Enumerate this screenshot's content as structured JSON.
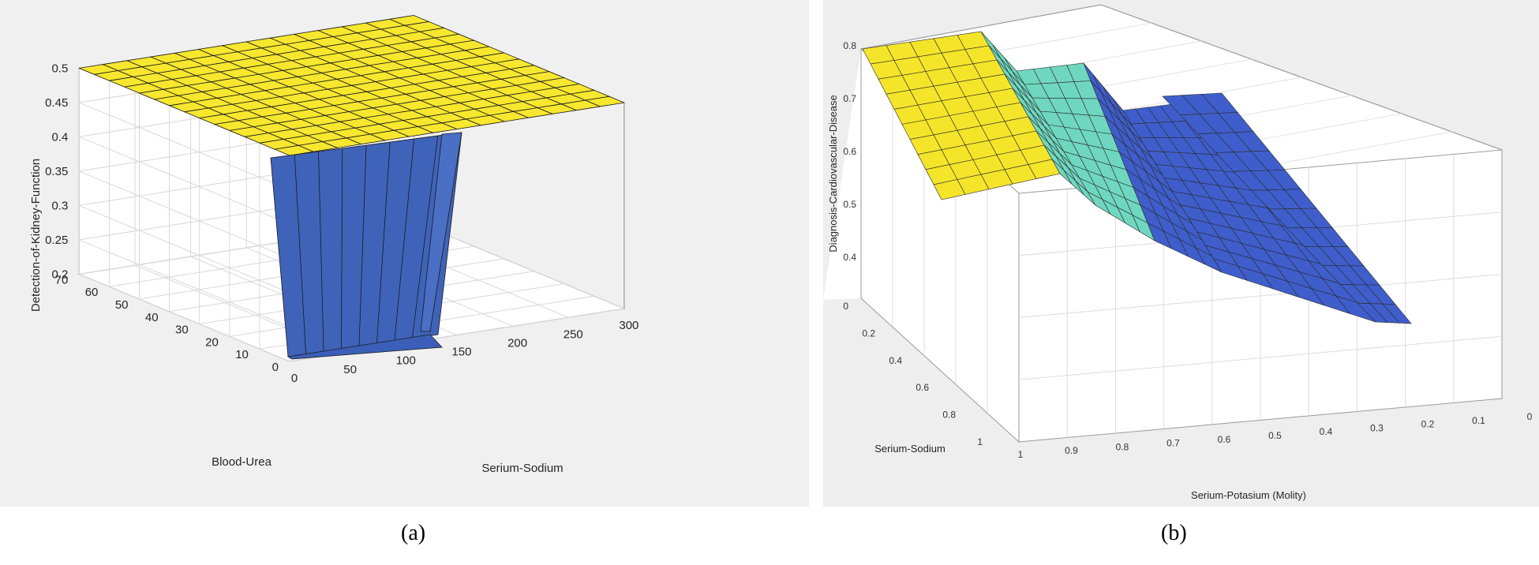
{
  "captions": {
    "a": "(a)",
    "b": "(b)"
  },
  "chart_data": [
    {
      "type": "surface",
      "panel": "(a)",
      "zlabel": "Detection-of-Kidney-Function",
      "xlabel": "Serium-Sodium",
      "ylabel": "Blood-Urea",
      "xlim": [
        0,
        300
      ],
      "ylim": [
        0,
        70
      ],
      "zlim": [
        0.2,
        0.5
      ],
      "x_ticks": [
        "0",
        "50",
        "100",
        "150",
        "200",
        "250",
        "300"
      ],
      "y_ticks": [
        "0",
        "10",
        "20",
        "30",
        "40",
        "50",
        "60",
        "70"
      ],
      "z_ticks": [
        "0.2",
        "0.25",
        "0.3",
        "0.35",
        "0.4",
        "0.45",
        "0.5"
      ],
      "regions": [
        {
          "serium_sodium": [
            0,
            110
          ],
          "blood_urea": [
            0,
            70
          ],
          "output": 0.2,
          "color": "#3b5fb8"
        },
        {
          "serium_sodium": [
            110,
            300
          ],
          "blood_urea": [
            0,
            70
          ],
          "output": 0.5,
          "color": "#f7e72e"
        }
      ],
      "colors": {
        "high": "#f7e72e",
        "low": "#3b5fb8",
        "wall": "#3b60b6"
      }
    },
    {
      "type": "surface",
      "panel": "(b)",
      "zlabel": "Diagnosis-Cardiovascular-Disease",
      "ylabel": "Serium-Sodium",
      "xlabel": "Serium-Potasium (Molity)",
      "x_ticks": [
        "1",
        "0.9",
        "0.8",
        "0.7",
        "0.6",
        "0.5",
        "0.4",
        "0.3",
        "0.2",
        "0.1",
        "0"
      ],
      "y_ticks": [
        "0",
        "0.2",
        "0.4",
        "0.6",
        "0.8",
        "1"
      ],
      "z_ticks": [
        "0.4",
        "0.5",
        "0.6",
        "0.7",
        "0.8"
      ],
      "levels": [
        {
          "serium_potasium": [
            0.85,
            1.0
          ],
          "output": 0.83,
          "color": "#f5e52a"
        },
        {
          "serium_potasium": [
            0.55,
            0.75
          ],
          "output": 0.6,
          "color": "#6fd7bf"
        },
        {
          "serium_potasium": [
            0.0,
            0.4
          ],
          "output": 0.4,
          "color": "#3f5ecb"
        }
      ],
      "colors": {
        "high": "#f5e52a",
        "mid": "#6fd7bf",
        "low": "#3f5ecb"
      }
    }
  ]
}
